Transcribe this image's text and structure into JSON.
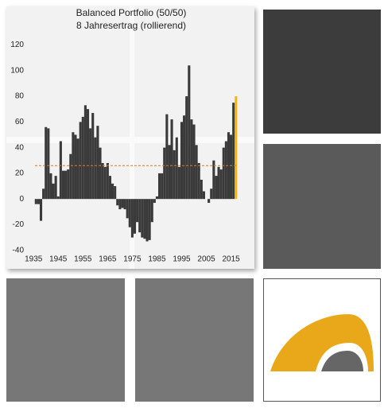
{
  "chart_data": {
    "type": "bar",
    "title": "Balanced Portfolio (50/50)",
    "subtitle": "8 Jahresertrag (rollierend)",
    "x": [
      1936,
      1937,
      1938,
      1939,
      1940,
      1941,
      1942,
      1943,
      1944,
      1945,
      1946,
      1947,
      1948,
      1949,
      1950,
      1951,
      1952,
      1953,
      1954,
      1955,
      1956,
      1957,
      1958,
      1959,
      1960,
      1961,
      1962,
      1963,
      1964,
      1965,
      1966,
      1967,
      1968,
      1969,
      1970,
      1971,
      1972,
      1973,
      1974,
      1975,
      1976,
      1977,
      1978,
      1979,
      1980,
      1981,
      1982,
      1983,
      1984,
      1985,
      1986,
      1987,
      1988,
      1989,
      1990,
      1991,
      1992,
      1993,
      1994,
      1995,
      1996,
      1997,
      1998,
      1999,
      2000,
      2001,
      2002,
      2003,
      2004,
      2005,
      2006,
      2007,
      2008,
      2009,
      2010,
      2011,
      2012,
      2013,
      2014,
      2015,
      2016,
      2017
    ],
    "values": [
      -4,
      -4,
      -17,
      8,
      56,
      55,
      20,
      12,
      18,
      2,
      45,
      22,
      22,
      23,
      35,
      52,
      50,
      47,
      60,
      64,
      73,
      70,
      55,
      67,
      48,
      57,
      40,
      28,
      25,
      28,
      18,
      12,
      10,
      -5,
      -8,
      -7,
      -8,
      -15,
      -22,
      -30,
      -27,
      -18,
      -26,
      -30,
      -31,
      -33,
      -32,
      -18,
      -3,
      2,
      20,
      20,
      40,
      66,
      42,
      62,
      38,
      48,
      25,
      60,
      65,
      80,
      104,
      62,
      58,
      42,
      28,
      15,
      6,
      0,
      -3,
      8,
      30,
      18,
      25,
      23,
      40,
      45,
      52,
      50,
      75,
      80
    ],
    "color": "#3a3a3a",
    "last_color": "#f5b700",
    "reference_line": 26,
    "reference_color": "#e07b22",
    "xlim": [
      1933,
      2019
    ],
    "xticks": [
      1935,
      1945,
      1955,
      1965,
      1975,
      1985,
      1995,
      2005,
      2015
    ],
    "ylim": [
      -42,
      124
    ],
    "yticks": [
      -40,
      -20,
      0,
      20,
      40,
      60,
      80,
      100,
      120
    ]
  }
}
